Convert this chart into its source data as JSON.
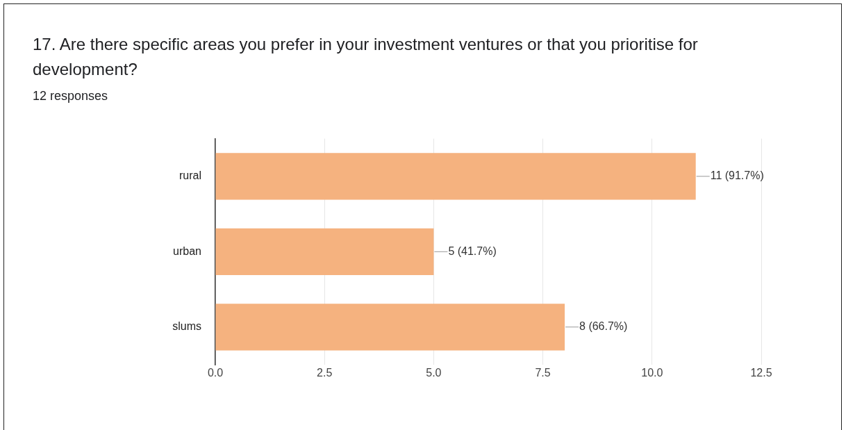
{
  "chart_data": {
    "type": "bar",
    "orientation": "horizontal",
    "title": "17. Are there specific areas you prefer in your investment ventures or that you prioritise for development?",
    "subtitle": "12 responses",
    "categories": [
      "rural",
      "urban",
      "slums"
    ],
    "values": [
      11,
      5,
      8
    ],
    "value_labels": [
      "11 (91.7%)",
      "5 (41.7%)",
      "8 (66.7%)"
    ],
    "color": "#f5b27f",
    "xlim": [
      0,
      12.5
    ],
    "xticks": [
      {
        "value": 0,
        "label": "0.0"
      },
      {
        "value": 2.5,
        "label": "2.5"
      },
      {
        "value": 5,
        "label": "5.0"
      },
      {
        "value": 7.5,
        "label": "7.5"
      },
      {
        "value": 10,
        "label": "10.0"
      },
      {
        "value": 12.5,
        "label": "12.5"
      }
    ],
    "grid": "x"
  }
}
